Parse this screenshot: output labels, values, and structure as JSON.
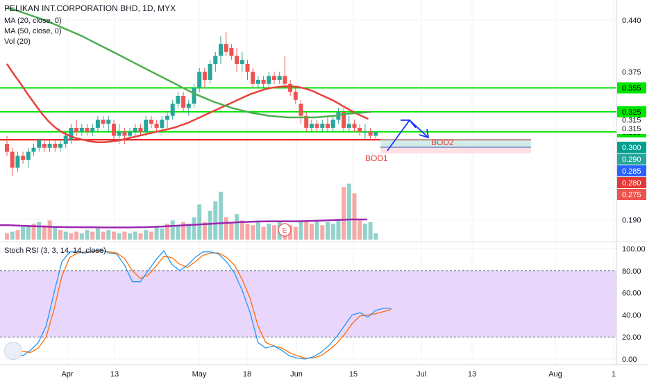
{
  "header": {
    "title": "PELIKAN INT.CORPORATION BHD, 1D, MYX",
    "ma20_label": "MA (20, close, 0)",
    "ma50_label": "MA (50, close, 0)",
    "vol_label": "Vol (20)",
    "rsi_label": "Stoch RSI (3, 3, 14, 14, close)"
  },
  "colors": {
    "up": "#26a69a",
    "down": "#ef5350",
    "ma20": "#e8403a",
    "ma50": "#4caf50",
    "vol_ma": "#9c27b0",
    "level_green": "#00e600",
    "level_red": "#e60000",
    "k_line": "#2196f3",
    "d_line": "#ff6d00",
    "rsi_band": "#e1c8fb",
    "annotation_blue": "#1a33ff",
    "annotation_red": "#e53935"
  },
  "chart_data": [
    {
      "type": "candlestick",
      "title": "PELIKAN INT.CORPORATION BHD, 1D, MYX",
      "x_tick_labels": [
        "Apr",
        "13",
        "May",
        "18",
        "Jun",
        "15",
        "Jul",
        "13",
        "Aug",
        "1"
      ],
      "y_tick_labels": [
        "0.440",
        "0.375",
        "0.315",
        "0.190"
      ],
      "ylim": [
        0.165,
        0.465
      ],
      "candles_ohlc": [
        [
          0.285,
          0.295,
          0.27,
          0.275
        ],
        [
          0.275,
          0.28,
          0.245,
          0.255
        ],
        [
          0.255,
          0.275,
          0.25,
          0.27
        ],
        [
          0.27,
          0.275,
          0.26,
          0.265
        ],
        [
          0.265,
          0.28,
          0.255,
          0.275
        ],
        [
          0.275,
          0.285,
          0.27,
          0.28
        ],
        [
          0.28,
          0.29,
          0.275,
          0.29
        ],
        [
          0.285,
          0.29,
          0.275,
          0.28
        ],
        [
          0.28,
          0.29,
          0.275,
          0.285
        ],
        [
          0.285,
          0.29,
          0.275,
          0.28
        ],
        [
          0.28,
          0.29,
          0.275,
          0.285
        ],
        [
          0.285,
          0.3,
          0.28,
          0.295
        ],
        [
          0.29,
          0.31,
          0.285,
          0.305
        ],
        [
          0.305,
          0.315,
          0.295,
          0.3
        ],
        [
          0.3,
          0.31,
          0.295,
          0.305
        ],
        [
          0.305,
          0.31,
          0.295,
          0.3
        ],
        [
          0.3,
          0.31,
          0.295,
          0.305
        ],
        [
          0.305,
          0.32,
          0.3,
          0.315
        ],
        [
          0.315,
          0.32,
          0.305,
          0.31
        ],
        [
          0.31,
          0.32,
          0.3,
          0.315
        ],
        [
          0.31,
          0.315,
          0.29,
          0.295
        ],
        [
          0.295,
          0.31,
          0.285,
          0.3
        ],
        [
          0.3,
          0.305,
          0.285,
          0.295
        ],
        [
          0.295,
          0.305,
          0.29,
          0.3
        ],
        [
          0.3,
          0.31,
          0.295,
          0.305
        ],
        [
          0.305,
          0.31,
          0.295,
          0.3
        ],
        [
          0.3,
          0.32,
          0.295,
          0.315
        ],
        [
          0.315,
          0.32,
          0.305,
          0.31
        ],
        [
          0.31,
          0.315,
          0.3,
          0.305
        ],
        [
          0.305,
          0.32,
          0.3,
          0.315
        ],
        [
          0.315,
          0.325,
          0.305,
          0.32
        ],
        [
          0.32,
          0.34,
          0.315,
          0.335
        ],
        [
          0.335,
          0.35,
          0.33,
          0.345
        ],
        [
          0.345,
          0.35,
          0.325,
          0.33
        ],
        [
          0.33,
          0.34,
          0.32,
          0.335
        ],
        [
          0.335,
          0.36,
          0.33,
          0.355
        ],
        [
          0.355,
          0.38,
          0.35,
          0.375
        ],
        [
          0.375,
          0.38,
          0.355,
          0.365
        ],
        [
          0.365,
          0.39,
          0.36,
          0.385
        ],
        [
          0.385,
          0.4,
          0.375,
          0.395
        ],
        [
          0.395,
          0.42,
          0.385,
          0.41
        ],
        [
          0.41,
          0.425,
          0.395,
          0.4
        ],
        [
          0.405,
          0.41,
          0.39,
          0.395
        ],
        [
          0.395,
          0.405,
          0.375,
          0.385
        ],
        [
          0.385,
          0.4,
          0.375,
          0.39
        ],
        [
          0.385,
          0.39,
          0.365,
          0.375
        ],
        [
          0.375,
          0.38,
          0.355,
          0.36
        ],
        [
          0.36,
          0.37,
          0.355,
          0.365
        ],
        [
          0.365,
          0.37,
          0.355,
          0.36
        ],
        [
          0.36,
          0.375,
          0.355,
          0.37
        ],
        [
          0.37,
          0.375,
          0.36,
          0.365
        ],
        [
          0.365,
          0.375,
          0.36,
          0.37
        ],
        [
          0.37,
          0.395,
          0.355,
          0.36
        ],
        [
          0.36,
          0.365,
          0.345,
          0.35
        ],
        [
          0.35,
          0.355,
          0.335,
          0.34
        ],
        [
          0.335,
          0.34,
          0.31,
          0.32
        ],
        [
          0.32,
          0.325,
          0.3,
          0.305
        ],
        [
          0.305,
          0.315,
          0.3,
          0.31
        ],
        [
          0.31,
          0.315,
          0.3,
          0.305
        ],
        [
          0.305,
          0.315,
          0.3,
          0.31
        ],
        [
          0.31,
          0.32,
          0.3,
          0.305
        ],
        [
          0.305,
          0.32,
          0.3,
          0.315
        ],
        [
          0.315,
          0.33,
          0.31,
          0.325
        ],
        [
          0.325,
          0.33,
          0.3,
          0.305
        ],
        [
          0.305,
          0.32,
          0.3,
          0.31
        ],
        [
          0.31,
          0.315,
          0.3,
          0.305
        ],
        [
          0.305,
          0.31,
          0.295,
          0.3
        ],
        [
          0.3,
          0.31,
          0.29,
          0.3
        ],
        [
          0.3,
          0.305,
          0.29,
          0.295
        ],
        [
          0.295,
          0.3,
          0.29,
          0.3
        ]
      ],
      "ma20": [
        0.385,
        0.372,
        0.36,
        0.347,
        0.335,
        0.323,
        0.313,
        0.305,
        0.299,
        0.295,
        0.292,
        0.29,
        0.288,
        0.287,
        0.287,
        0.288,
        0.289,
        0.291,
        0.293,
        0.295,
        0.297,
        0.299,
        0.301,
        0.303,
        0.305,
        0.308,
        0.311,
        0.315,
        0.319,
        0.323,
        0.327,
        0.331,
        0.335,
        0.339,
        0.343,
        0.347,
        0.35,
        0.353,
        0.355,
        0.356,
        0.357,
        0.357,
        0.356,
        0.354,
        0.351,
        0.347,
        0.343,
        0.339,
        0.334,
        0.329,
        0.324,
        0.32,
        0.316
      ],
      "ma50": [
        0.455,
        0.452,
        0.448,
        0.444,
        0.44,
        0.435,
        0.43,
        0.425,
        0.42,
        0.414,
        0.408,
        0.402,
        0.396,
        0.39,
        0.384,
        0.378,
        0.372,
        0.366,
        0.36,
        0.354,
        0.348,
        0.343,
        0.338,
        0.334,
        0.33,
        0.327,
        0.324,
        0.322,
        0.32,
        0.319,
        0.318,
        0.318,
        0.318,
        0.318,
        0.319,
        0.32,
        0.322,
        0.323,
        0.324,
        0.325
      ],
      "price_levels": [
        {
          "label": "0.355",
          "value": 0.355,
          "color": "#00e600"
        },
        {
          "label": "0.325",
          "value": 0.325,
          "color": "#00e600"
        },
        {
          "label": "0.300",
          "value": 0.3,
          "color": "#00e600"
        }
      ],
      "support_line": 0.29,
      "price_tags": [
        {
          "label": "0.315",
          "value": 0.315,
          "bg": "#ffffff",
          "fg": "#131722"
        },
        {
          "label": "0.300",
          "value": 0.3,
          "bg": "#00a090",
          "fg": "#ffffff"
        },
        {
          "label": "0.290",
          "value": 0.29,
          "bg": "#26a69a",
          "fg": "#ffffff"
        },
        {
          "label": "0.285",
          "value": 0.285,
          "bg": "#2962ff",
          "fg": "#ffffff"
        },
        {
          "label": "0.280",
          "value": 0.28,
          "bg": "#e53935",
          "fg": "#ffffff"
        },
        {
          "label": "0.275",
          "value": 0.275,
          "bg": "#ef5350",
          "fg": "#ffffff"
        }
      ],
      "annotations": [
        {
          "label": "BOD1",
          "color": "#e53935"
        },
        {
          "label": "BOD2",
          "color": "#e53935"
        }
      ],
      "event_badge": "E"
    },
    {
      "type": "bar",
      "title": "Vol (20)",
      "volumes_up": [
        false,
        true,
        false,
        true,
        true,
        false,
        true,
        false,
        false,
        true,
        false,
        true,
        false,
        false,
        true,
        true,
        false,
        true,
        false,
        true,
        false,
        true,
        false,
        true,
        true,
        false,
        true,
        false,
        true,
        true,
        false,
        true,
        true,
        false,
        true,
        true,
        true,
        false,
        true,
        true,
        true,
        false,
        false,
        true,
        false,
        false,
        false,
        true,
        false,
        true,
        false,
        true,
        false,
        false,
        false,
        true,
        false,
        false,
        true,
        false,
        true,
        true,
        true,
        false,
        true,
        false,
        false,
        true,
        true,
        true
      ],
      "volumes": [
        4,
        5,
        6,
        8,
        9,
        10,
        11,
        9,
        12,
        8,
        6,
        5,
        4,
        5,
        4,
        6,
        5,
        7,
        5,
        6,
        5,
        4,
        5,
        4,
        5,
        4,
        6,
        5,
        8,
        7,
        10,
        12,
        9,
        11,
        10,
        14,
        22,
        11,
        18,
        24,
        30,
        14,
        11,
        16,
        12,
        10,
        9,
        12,
        8,
        10,
        9,
        11,
        10,
        9,
        8,
        12,
        11,
        10,
        12,
        9,
        11,
        10,
        13,
        33,
        35,
        29,
        12,
        10,
        11,
        4
      ],
      "vol_ma": [
        9,
        9,
        8.8,
        8.6,
        8.4,
        8.2,
        8.0,
        7.9,
        7.8,
        7.8,
        7.7,
        7.7,
        7.6,
        7.6,
        7.6,
        7.6,
        7.7,
        7.8,
        8.0,
        8.2,
        8.5,
        8.8,
        9.1,
        9.4,
        9.7,
        10.0,
        10.3,
        10.6,
        10.9,
        11.1,
        11.3,
        11.4,
        11.5,
        11.5,
        11.5,
        11.5,
        11.6,
        11.8,
        12.0,
        12.2,
        12.4,
        12.6,
        12.6,
        12.6
      ]
    },
    {
      "type": "line",
      "title": "Stoch RSI (3, 3, 14, 14, close)",
      "y_tick_labels": [
        "100.00",
        "80.00",
        "60.00",
        "40.00",
        "20.00",
        "0.00"
      ],
      "ylim": [
        -5,
        105
      ],
      "band": [
        20,
        80
      ],
      "series": [
        {
          "values": [
            5,
            4,
            3,
            8,
            15,
            30,
            60,
            88,
            97,
            97,
            96,
            98,
            99,
            96,
            95,
            85,
            70,
            70,
            80,
            90,
            98,
            86,
            80,
            85,
            92,
            97,
            97,
            95,
            88,
            78,
            62,
            42,
            15,
            10,
            12,
            8,
            3,
            1,
            0,
            2,
            6,
            12,
            20,
            30,
            40,
            42,
            38,
            44,
            46,
            46
          ]
        },
        {
          "values": [
            10,
            9,
            7,
            6,
            10,
            20,
            45,
            75,
            92,
            96,
            97,
            97,
            98,
            97,
            96,
            91,
            80,
            73,
            76,
            84,
            93,
            92,
            86,
            83,
            88,
            94,
            96,
            96,
            92,
            85,
            72,
            55,
            30,
            15,
            12,
            10,
            6,
            3,
            1,
            1,
            3,
            8,
            14,
            22,
            32,
            39,
            40,
            41,
            43,
            45
          ]
        }
      ]
    }
  ]
}
